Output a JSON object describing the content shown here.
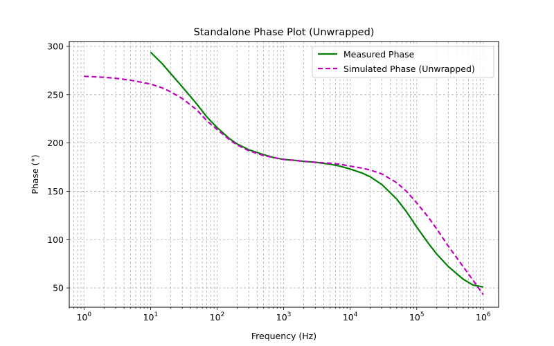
{
  "chart_data": {
    "type": "line",
    "title": "Standalone Phase Plot (Unwrapped)",
    "xlabel": "Frequency (Hz)",
    "ylabel": "Phase (°)",
    "xscale": "log",
    "xlim": [
      0.6,
      1700000
    ],
    "ylim": [
      30,
      305
    ],
    "xticks": [
      {
        "value": 1,
        "base": "10",
        "exp": "0"
      },
      {
        "value": 10,
        "base": "10",
        "exp": "1"
      },
      {
        "value": 100,
        "base": "10",
        "exp": "2"
      },
      {
        "value": 1000,
        "base": "10",
        "exp": "3"
      },
      {
        "value": 10000,
        "base": "10",
        "exp": "4"
      },
      {
        "value": 100000,
        "base": "10",
        "exp": "5"
      },
      {
        "value": 1000000,
        "base": "10",
        "exp": "6"
      }
    ],
    "yticks": [
      50,
      100,
      150,
      200,
      250,
      300
    ],
    "grid": true,
    "legend_position": "top-right",
    "series": [
      {
        "name": "Measured Phase",
        "color": "#008000",
        "dash": "solid",
        "points": [
          [
            10,
            294
          ],
          [
            15,
            282
          ],
          [
            20,
            272
          ],
          [
            30,
            258
          ],
          [
            50,
            240
          ],
          [
            70,
            227
          ],
          [
            100,
            216
          ],
          [
            150,
            205
          ],
          [
            200,
            199
          ],
          [
            300,
            193
          ],
          [
            500,
            188
          ],
          [
            700,
            185
          ],
          [
            1000,
            183
          ],
          [
            1500,
            182
          ],
          [
            2000,
            181
          ],
          [
            3000,
            180
          ],
          [
            5000,
            178
          ],
          [
            7000,
            176
          ],
          [
            10000,
            173
          ],
          [
            15000,
            169
          ],
          [
            20000,
            165
          ],
          [
            30000,
            157
          ],
          [
            50000,
            142
          ],
          [
            70000,
            129
          ],
          [
            100000,
            113
          ],
          [
            150000,
            96
          ],
          [
            200000,
            85
          ],
          [
            300000,
            72
          ],
          [
            500000,
            59
          ],
          [
            700000,
            53
          ],
          [
            1000000,
            51
          ]
        ]
      },
      {
        "name": "Simulated Phase (Unwrapped)",
        "color": "#bf00bf",
        "dash": "dashed",
        "points": [
          [
            1,
            269
          ],
          [
            2,
            268
          ],
          [
            3,
            267
          ],
          [
            5,
            265
          ],
          [
            7,
            263
          ],
          [
            10,
            261
          ],
          [
            15,
            257
          ],
          [
            20,
            253
          ],
          [
            30,
            246
          ],
          [
            50,
            234
          ],
          [
            70,
            223
          ],
          [
            100,
            214
          ],
          [
            150,
            204
          ],
          [
            200,
            198
          ],
          [
            300,
            192
          ],
          [
            500,
            187
          ],
          [
            700,
            185
          ],
          [
            1000,
            183
          ],
          [
            1500,
            182
          ],
          [
            2000,
            181
          ],
          [
            3000,
            180
          ],
          [
            5000,
            179
          ],
          [
            7000,
            178
          ],
          [
            10000,
            176
          ],
          [
            15000,
            174
          ],
          [
            20000,
            172
          ],
          [
            30000,
            168
          ],
          [
            50000,
            159
          ],
          [
            70000,
            150
          ],
          [
            100000,
            138
          ],
          [
            150000,
            123
          ],
          [
            200000,
            111
          ],
          [
            300000,
            93
          ],
          [
            500000,
            72
          ],
          [
            700000,
            58
          ],
          [
            1000000,
            43
          ]
        ]
      }
    ]
  }
}
